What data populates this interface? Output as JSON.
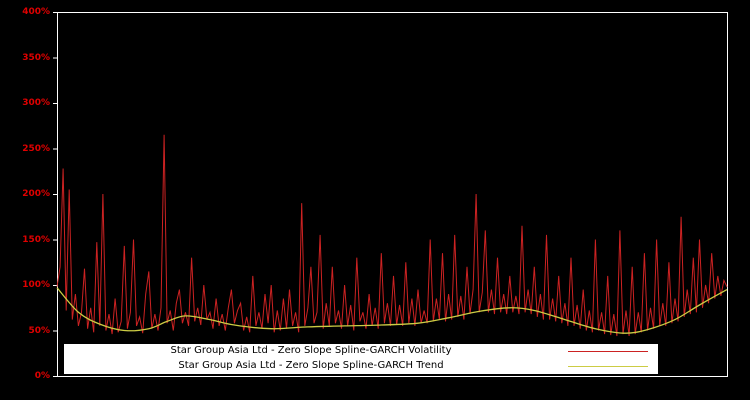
{
  "chart_data": {
    "type": "line",
    "title": "",
    "xlabel": "",
    "ylabel": "",
    "background": "#000000",
    "frame_color": "#ffffff",
    "axis_label_color": "#e00000",
    "grid": false,
    "legend_position": "bottom-center",
    "ylim_percent": [
      0,
      400
    ],
    "yticks_percent": [
      0,
      50,
      100,
      150,
      200,
      250,
      300,
      350,
      400
    ],
    "ytick_labels": [
      "0%",
      "50%",
      "100%",
      "150%",
      "200%",
      "250%",
      "300%",
      "350%",
      "400%"
    ],
    "series": [
      {
        "name": "Star Group Asia Ltd - Zero Slope Spline-GARCH Volatility",
        "color": "#cc2222",
        "values_percent": [
          98,
          120,
          228,
          72,
          205,
          62,
          90,
          55,
          70,
          118,
          52,
          75,
          48,
          147,
          55,
          200,
          50,
          68,
          46,
          85,
          48,
          60,
          143,
          52,
          70,
          150,
          55,
          65,
          47,
          90,
          115,
          52,
          68,
          50,
          75,
          265,
          58,
          72,
          50,
          80,
          95,
          58,
          70,
          55,
          130,
          60,
          75,
          56,
          100,
          62,
          70,
          52,
          85,
          55,
          68,
          50,
          75,
          95,
          58,
          72,
          80,
          50,
          65,
          48,
          110,
          55,
          70,
          52,
          90,
          58,
          100,
          48,
          72,
          50,
          85,
          52,
          95,
          55,
          70,
          48,
          190,
          55,
          75,
          120,
          58,
          70,
          155,
          52,
          80,
          55,
          120,
          58,
          72,
          52,
          100,
          55,
          78,
          50,
          130,
          60,
          70,
          52,
          90,
          55,
          75,
          52,
          135,
          58,
          80,
          55,
          110,
          56,
          78,
          55,
          125,
          58,
          85,
          55,
          95,
          58,
          72,
          58,
          150,
          60,
          85,
          62,
          135,
          60,
          90,
          62,
          155,
          65,
          88,
          62,
          120,
          68,
          95,
          200,
          70,
          92,
          160,
          70,
          95,
          68,
          130,
          70,
          90,
          68,
          110,
          70,
          88,
          68,
          165,
          70,
          95,
          68,
          120,
          65,
          90,
          62,
          155,
          62,
          85,
          60,
          110,
          58,
          80,
          55,
          130,
          55,
          78,
          52,
          95,
          50,
          72,
          48,
          150,
          50,
          70,
          46,
          110,
          45,
          68,
          44,
          160,
          46,
          72,
          44,
          120,
          46,
          70,
          48,
          135,
          50,
          75,
          52,
          150,
          55,
          80,
          55,
          125,
          58,
          85,
          60,
          175,
          65,
          95,
          68,
          130,
          70,
          150,
          75,
          100,
          80,
          135,
          85,
          110,
          88,
          105,
          98
        ]
      },
      {
        "name": "Star Group Asia Ltd - Zero Slope Spline-GARCH Trend",
        "color": "#cccc44",
        "points_percent": [
          [
            0,
            97
          ],
          [
            7,
            70
          ],
          [
            14,
            57
          ],
          [
            22,
            50
          ],
          [
            30,
            52
          ],
          [
            36,
            60
          ],
          [
            42,
            66
          ],
          [
            50,
            62
          ],
          [
            58,
            56
          ],
          [
            70,
            52
          ],
          [
            82,
            54
          ],
          [
            94,
            55
          ],
          [
            106,
            56
          ],
          [
            118,
            58
          ],
          [
            128,
            64
          ],
          [
            138,
            71
          ],
          [
            148,
            75
          ],
          [
            156,
            72
          ],
          [
            166,
            62
          ],
          [
            176,
            52
          ],
          [
            186,
            47
          ],
          [
            194,
            52
          ],
          [
            202,
            62
          ],
          [
            210,
            78
          ],
          [
            219,
            95
          ]
        ]
      }
    ]
  }
}
